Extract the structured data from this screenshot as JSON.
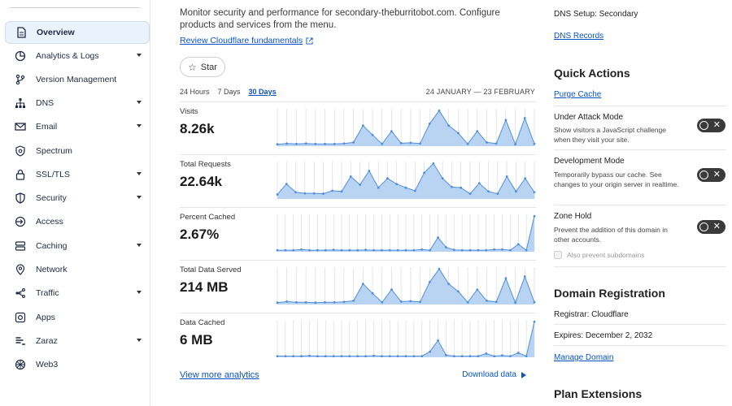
{
  "sidebar": {
    "items": [
      {
        "label": "Overview",
        "icon": "document-icon",
        "active": true,
        "caret": false
      },
      {
        "label": "Analytics & Logs",
        "icon": "pie-chart-icon",
        "caret": true
      },
      {
        "label": "Version Management",
        "icon": "branch-icon",
        "caret": false
      },
      {
        "label": "DNS",
        "icon": "network-tree-icon",
        "caret": true
      },
      {
        "label": "Email",
        "icon": "envelope-icon",
        "caret": true
      },
      {
        "label": "Spectrum",
        "icon": "shield-gear-icon",
        "caret": false
      },
      {
        "label": "SSL/TLS",
        "icon": "lock-icon",
        "caret": true
      },
      {
        "label": "Security",
        "icon": "shield-icon",
        "caret": true
      },
      {
        "label": "Access",
        "icon": "access-icon",
        "caret": false
      },
      {
        "label": "Caching",
        "icon": "server-icon",
        "caret": true
      },
      {
        "label": "Network",
        "icon": "location-pin-icon",
        "caret": false
      },
      {
        "label": "Traffic",
        "icon": "traffic-icon",
        "caret": true
      },
      {
        "label": "Apps",
        "icon": "apps-icon",
        "caret": false
      },
      {
        "label": "Zaraz",
        "icon": "zaraz-icon",
        "caret": true
      },
      {
        "label": "Web3",
        "icon": "web3-icon",
        "caret": false
      }
    ]
  },
  "main": {
    "intro": "Monitor security and performance for secondary-theburritobot.com. Configure products and services from the menu.",
    "fundamentals_link": "Review Cloudflare fundamentals",
    "star_label": "Star",
    "ranges": [
      {
        "label": "24 Hours",
        "selected": false
      },
      {
        "label": "7 Days",
        "selected": false
      },
      {
        "label": "30 Days",
        "selected": true
      }
    ],
    "date_range": "24 JANUARY — 23 FEBRUARY",
    "view_more": "View more analytics",
    "download": "Download data"
  },
  "chart_data": [
    {
      "type": "area",
      "label": "Visits",
      "value": "8.26k",
      "values": [
        0.05,
        0.07,
        0.06,
        0.07,
        0.06,
        0.06,
        0.06,
        0.07,
        0.1,
        0.55,
        0.3,
        0.06,
        0.4,
        0.08,
        0.09,
        0.07,
        0.6,
        0.95,
        0.55,
        0.35,
        0.06,
        0.4,
        0.1,
        0.07,
        0.7,
        0.05,
        0.75,
        0.06
      ]
    },
    {
      "type": "area",
      "label": "Total Requests",
      "value": "22.64k",
      "values": [
        0.12,
        0.4,
        0.18,
        0.15,
        0.15,
        0.14,
        0.22,
        0.2,
        0.6,
        0.38,
        0.75,
        0.3,
        0.55,
        0.4,
        0.3,
        0.22,
        0.7,
        0.95,
        0.55,
        0.32,
        0.3,
        0.14,
        0.42,
        0.2,
        0.14,
        0.6,
        0.2,
        0.55,
        0.18
      ]
    },
    {
      "type": "area",
      "label": "Percent Cached",
      "value": "2.67%",
      "values": [
        0.04,
        0.04,
        0.04,
        0.06,
        0.04,
        0.04,
        0.04,
        0.05,
        0.04,
        0.04,
        0.04,
        0.05,
        0.04,
        0.04,
        0.04,
        0.04,
        0.04,
        0.04,
        0.06,
        0.04,
        0.38,
        0.12,
        0.05,
        0.04,
        0.04,
        0.04,
        0.04,
        0.06,
        0.06,
        0.04,
        0.2,
        0.04,
        0.95
      ]
    },
    {
      "type": "area",
      "label": "Total Data Served",
      "value": "214 MB",
      "values": [
        0.05,
        0.08,
        0.06,
        0.06,
        0.05,
        0.06,
        0.06,
        0.07,
        0.1,
        0.55,
        0.3,
        0.06,
        0.4,
        0.08,
        0.09,
        0.07,
        0.6,
        0.95,
        0.55,
        0.35,
        0.06,
        0.4,
        0.1,
        0.07,
        0.7,
        0.05,
        0.75,
        0.06
      ]
    },
    {
      "type": "area",
      "label": "Data Cached",
      "value": "6 MB",
      "values": [
        0.03,
        0.03,
        0.03,
        0.03,
        0.04,
        0.03,
        0.03,
        0.03,
        0.03,
        0.03,
        0.03,
        0.03,
        0.04,
        0.03,
        0.03,
        0.03,
        0.03,
        0.03,
        0.03,
        0.15,
        0.45,
        0.06,
        0.03,
        0.03,
        0.03,
        0.03,
        0.1,
        0.03,
        0.05,
        0.03,
        0.12,
        0.03,
        0.95
      ]
    }
  ],
  "right": {
    "dns_setup_label": "DNS Setup:",
    "dns_setup_value": "Secondary",
    "dns_records": "DNS Records",
    "quick_actions_title": "Quick Actions",
    "purge_cache": "Purge Cache",
    "under_attack_title": "Under Attack Mode",
    "under_attack_desc": "Show visitors a JavaScript challenge when they visit your site.",
    "dev_mode_title": "Development Mode",
    "dev_mode_desc": "Temporarily bypass our cache. See changes to your origin server in realtime.",
    "zone_hold_title": "Zone Hold",
    "zone_hold_desc": "Prevent the addition of this domain in other accounts.",
    "also_prevent": "Also prevent subdomains",
    "domain_reg_title": "Domain Registration",
    "registrar": "Registrar: Cloudflare",
    "expires": "Expires: December 2, 2032",
    "manage_domain": "Manage Domain",
    "plan_ext_title": "Plan Extensions"
  },
  "colors": {
    "accent": "#0a52c7",
    "chart_fill": "#b9d3f3",
    "chart_line": "#4f8fdc",
    "toggle_off": "#3a3a3a"
  }
}
